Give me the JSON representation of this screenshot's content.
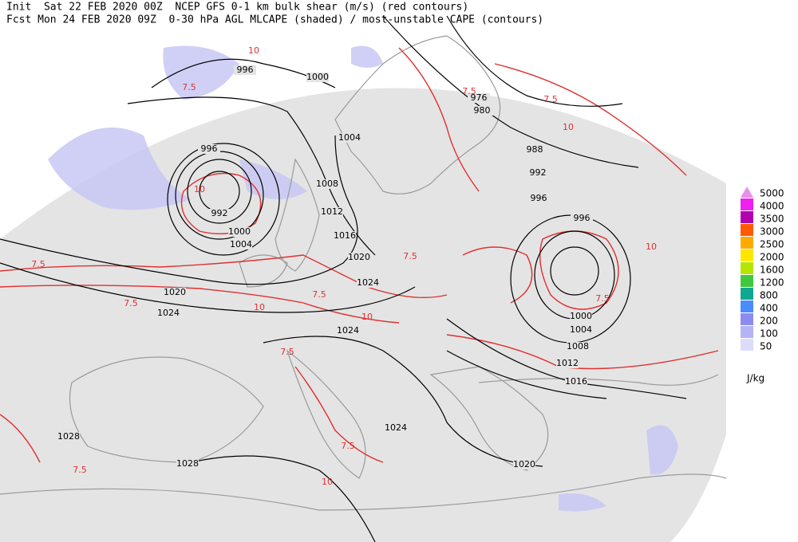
{
  "header": {
    "line1": "Init  Sat 22 FEB 2020 00Z  NCEP GFS 0-1 km bulk shear (m/s) (red contours)",
    "line2": "Fcst Mon 24 FEB 2020 09Z  0-30 hPa AGL MLCAPE (shaded) / most-unstable CAPE (contours)"
  },
  "colorbar": {
    "levels": [
      5000,
      4000,
      3500,
      3000,
      2500,
      2000,
      1600,
      1200,
      800,
      400,
      200,
      100,
      50
    ],
    "colors": [
      "#e890e8",
      "#f020f0",
      "#b000b0",
      "#ff5a00",
      "#ffaa00",
      "#ffe600",
      "#b4e600",
      "#40c840",
      "#10a890",
      "#4a8cff",
      "#8c8cf0",
      "#b4b4f5",
      "#dcdcfa"
    ],
    "unit": "J/kg"
  },
  "isobar_labels": [
    996,
    1000,
    976,
    980,
    1004,
    988,
    992,
    996,
    1008,
    996,
    1012,
    996,
    992,
    1000,
    1004,
    1016,
    1020,
    1024,
    1020,
    1024,
    1024,
    1000,
    1004,
    1008,
    1012,
    1016,
    1024,
    1028,
    1028,
    1020
  ],
  "shear_labels": [
    10,
    7.5,
    10,
    7.5,
    7.5,
    10,
    7.5,
    7.5,
    10,
    7.5,
    7.5,
    10,
    7.5,
    10,
    7.5,
    7.5,
    10,
    7.5
  ]
}
